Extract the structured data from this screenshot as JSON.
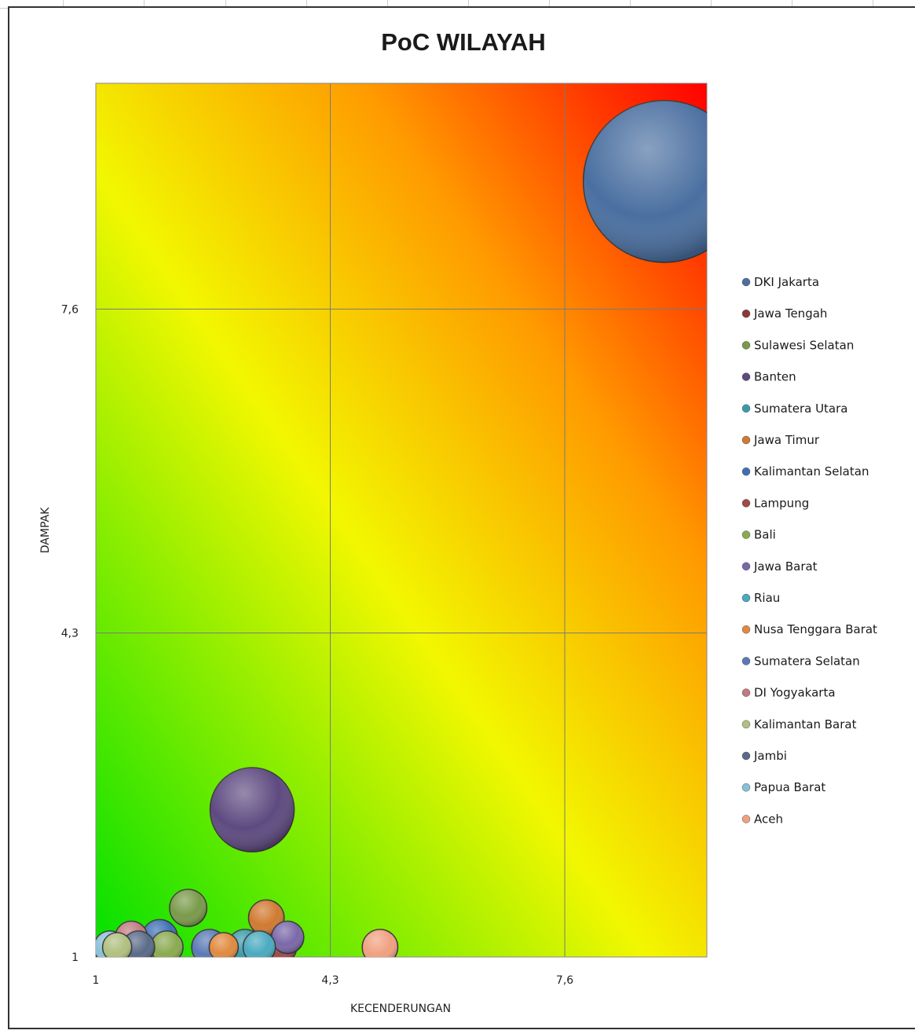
{
  "chart_data": {
    "type": "bubble",
    "title": "PoC WILAYAH",
    "xlabel": "KECENDERUNGAN",
    "ylabel": "DAMPAK",
    "xlim": [
      1,
      9.6
    ],
    "ylim": [
      1,
      9.9
    ],
    "xticks": [
      "1",
      "4,3",
      "7,6"
    ],
    "yticks": [
      "1",
      "4,3",
      "7,6"
    ],
    "xtick_values": [
      1,
      4.3,
      7.6
    ],
    "ytick_values": [
      1,
      4.3,
      7.6
    ],
    "grid": true,
    "legend_position": "right",
    "background": "diagonal gradient green (bottom-left) to yellow to red (top-right)",
    "series": [
      {
        "name": "DKI Jakarta",
        "color": "#4a6fa0",
        "x": 9.0,
        "y": 8.9,
        "size": 10
      },
      {
        "name": "Jawa Tengah",
        "color": "#8b3a3a",
        "x": 3.4,
        "y": 1.1,
        "size": 2.2
      },
      {
        "name": "Sulawesi Selatan",
        "color": "#7a9a4a",
        "x": 2.3,
        "y": 1.5,
        "size": 2.3
      },
      {
        "name": "Banten",
        "color": "#5e4a80",
        "x": 3.2,
        "y": 2.5,
        "size": 5.2
      },
      {
        "name": "Sumatera Utara",
        "color": "#3a9aaa",
        "x": 3.1,
        "y": 1.1,
        "size": 2.2
      },
      {
        "name": "Jawa Timur",
        "color": "#d07a30",
        "x": 3.4,
        "y": 1.4,
        "size": 2.2
      },
      {
        "name": "Kalimantan Selatan",
        "color": "#3e6fb5",
        "x": 1.9,
        "y": 1.2,
        "size": 2.2
      },
      {
        "name": "Lampung",
        "color": "#a04a4a",
        "x": 3.6,
        "y": 1.1,
        "size": 2.0
      },
      {
        "name": "Bali",
        "color": "#8aaa50",
        "x": 2.0,
        "y": 1.1,
        "size": 2.0
      },
      {
        "name": "Jawa Barat",
        "color": "#7a68a8",
        "x": 3.7,
        "y": 1.2,
        "size": 2.0
      },
      {
        "name": "Riau",
        "color": "#4aaac0",
        "x": 3.3,
        "y": 1.1,
        "size": 2.0
      },
      {
        "name": "Nusa Tenggara Barat",
        "color": "#e08a40",
        "x": 2.8,
        "y": 1.1,
        "size": 1.8
      },
      {
        "name": "Sumatera Selatan",
        "color": "#5a7ab5",
        "x": 2.6,
        "y": 1.1,
        "size": 2.2
      },
      {
        "name": "DI Yogyakarta",
        "color": "#c07a80",
        "x": 1.5,
        "y": 1.2,
        "size": 2.0
      },
      {
        "name": "Kalimantan Barat",
        "color": "#b0c080",
        "x": 1.3,
        "y": 1.1,
        "size": 1.8
      },
      {
        "name": "Jambi",
        "color": "#5a6a88",
        "x": 1.6,
        "y": 1.1,
        "size": 2.0
      },
      {
        "name": "Papua Barat",
        "color": "#8ac0d8",
        "x": 1.2,
        "y": 1.1,
        "size": 2.0
      },
      {
        "name": "Aceh",
        "color": "#f0a080",
        "x": 5.0,
        "y": 1.1,
        "size": 2.2
      }
    ]
  }
}
